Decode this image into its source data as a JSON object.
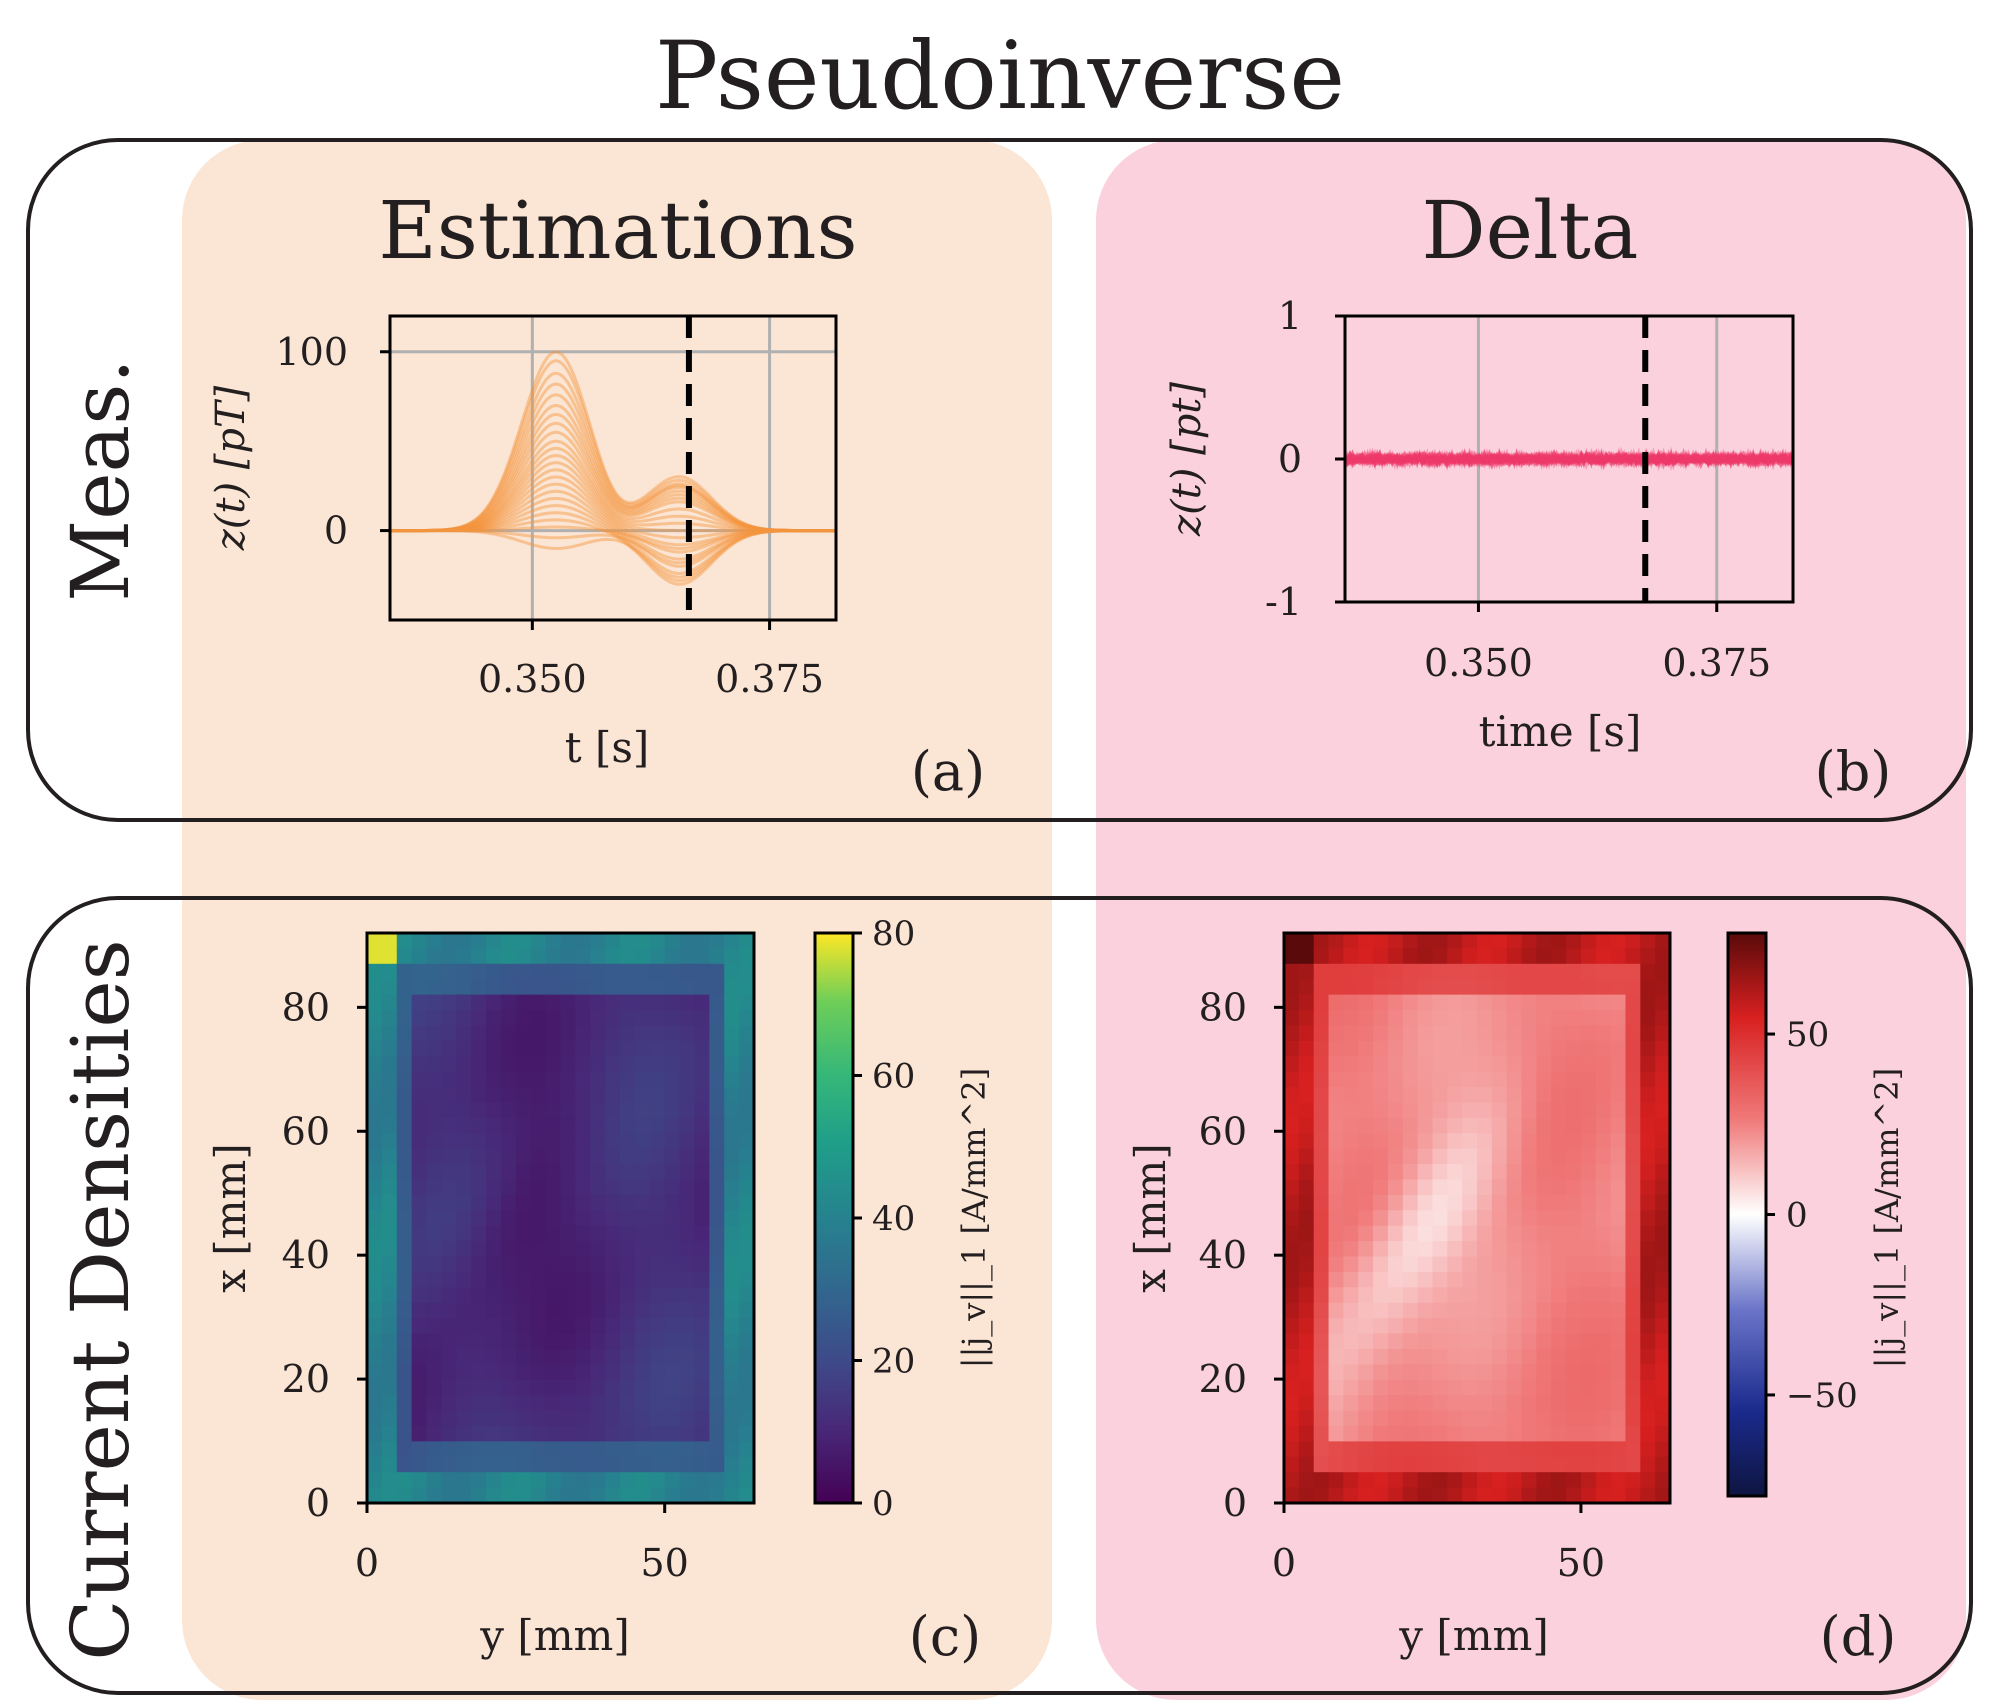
{
  "title": "Pseudoinverse",
  "columns": {
    "left": "Estimations",
    "right": "Delta"
  },
  "rows": {
    "top": "Meas.",
    "bottom": "Current Densities"
  },
  "colors": {
    "orange_bg": "#fbe5d4",
    "pink_bg": "#fad1dd",
    "orange_line": "#f4953f",
    "pink_line": "#ee3a6a"
  },
  "chart_data": [
    {
      "id": "a",
      "type": "line",
      "panel_label": "(a)",
      "xlabel": "t [s]",
      "ylabel": "z(t) [pT]",
      "xlim": [
        0.335,
        0.382
      ],
      "ylim": [
        -50,
        120
      ],
      "xticks": [
        0.35,
        0.375
      ],
      "xtick_labels": [
        "0.350",
        "0.375"
      ],
      "yticks": [
        0,
        100
      ],
      "ytick_labels": [
        "0",
        "100"
      ],
      "vline_x": 0.3665,
      "peak1_center": 0.3525,
      "peak2_center": 0.3655,
      "series_peak_amplitudes": [
        100,
        95,
        88,
        82,
        76,
        70,
        65,
        60,
        55,
        50,
        46,
        42,
        38,
        34,
        30,
        26,
        22,
        18,
        14,
        10,
        6,
        2,
        -4,
        -10
      ],
      "series_secondary_amplitudes": [
        30,
        28,
        26,
        25,
        24,
        22,
        20,
        18,
        16,
        12,
        8,
        4,
        0,
        -4,
        -8,
        -12,
        -16,
        -20,
        -24,
        -28,
        -30,
        -10,
        -18,
        -26
      ]
    },
    {
      "id": "b",
      "type": "line",
      "panel_label": "(b)",
      "xlabel": "time [s]",
      "ylabel": "z(t) [pt]",
      "xlim": [
        0.336,
        0.383
      ],
      "ylim": [
        -1,
        1
      ],
      "xticks": [
        0.35,
        0.375
      ],
      "xtick_labels": [
        "0.350",
        "0.375"
      ],
      "yticks": [
        -1,
        0,
        1
      ],
      "ytick_labels": [
        "-1",
        "0",
        "1"
      ],
      "vline_x": 0.3675,
      "noise_amplitude": 0.05,
      "series_count": 24
    },
    {
      "id": "c",
      "type": "heatmap",
      "panel_label": "(c)",
      "xlabel": "y [mm]",
      "ylabel": "x [mm]",
      "xlim": [
        0,
        65
      ],
      "ylim": [
        0,
        92
      ],
      "xticks": [
        0,
        50
      ],
      "yticks": [
        0,
        20,
        40,
        60,
        80
      ],
      "grid_cols": 26,
      "grid_rows": 37,
      "colormap": "viridis",
      "vmin": 0,
      "vmax": 80,
      "colorbar_label": "||j_v||_1 [A/mm^2]",
      "colorbar_ticks": [
        0,
        20,
        40,
        60,
        80
      ],
      "description_values": {
        "interior": 12,
        "edges": 40,
        "corner_top_left": 78,
        "center_min": 5
      }
    },
    {
      "id": "d",
      "type": "heatmap",
      "panel_label": "(d)",
      "xlabel": "y [mm]",
      "ylabel": "x [mm]",
      "xlim": [
        0,
        65
      ],
      "ylim": [
        0,
        92
      ],
      "xticks": [
        0,
        50
      ],
      "yticks": [
        0,
        20,
        40,
        60,
        80
      ],
      "grid_cols": 26,
      "grid_rows": 37,
      "colormap": "seismic",
      "vmin": -78,
      "vmax": 78,
      "colorbar_label": "||j_v||_1 [A/mm^2]",
      "colorbar_ticks": [
        -50,
        0,
        50
      ],
      "colorbar_tick_labels": [
        "−50",
        "0",
        "50"
      ],
      "description_values": {
        "interior": 25,
        "edges": 60,
        "corner_top_left": 78,
        "center_min": 3
      }
    }
  ]
}
